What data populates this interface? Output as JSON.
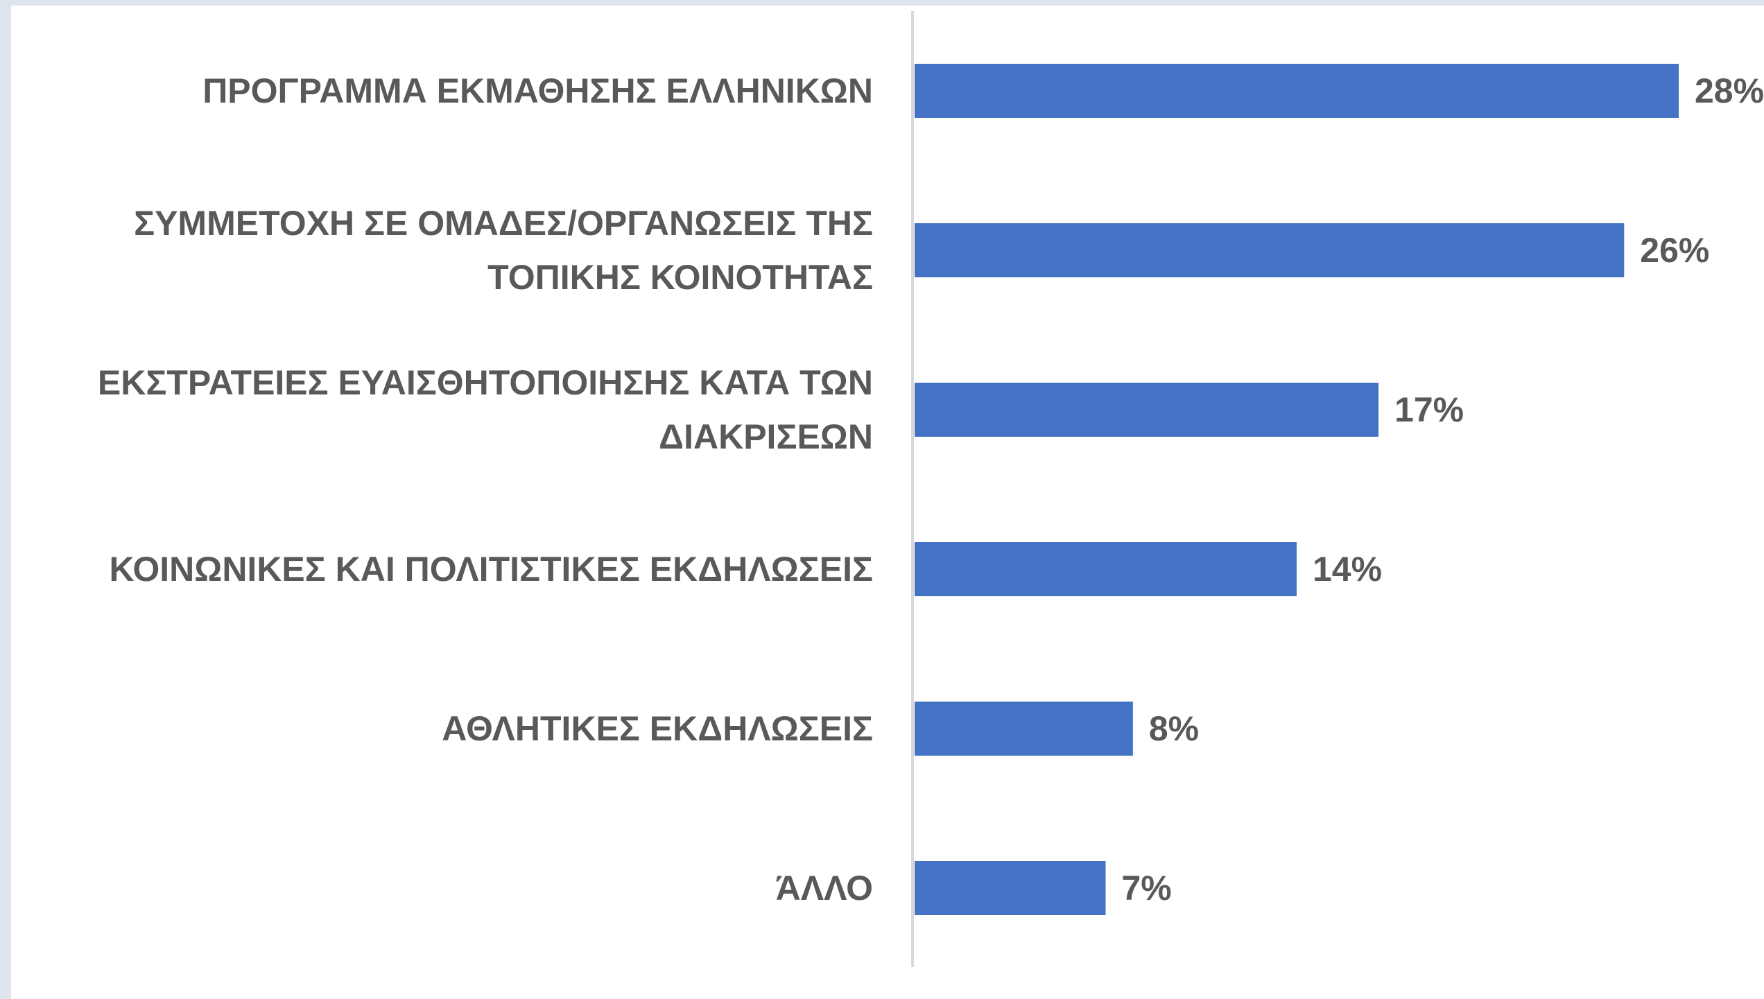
{
  "chart_data": {
    "type": "bar",
    "orientation": "horizontal",
    "categories": [
      "ΠΡΟΓΡΑΜΜΑ ΕΚΜΑΘΗΣΗΣ ΕΛΛΗΝΙΚΩΝ",
      "ΣΥΜΜΕΤΟΧΗ ΣΕ ΟΜΑΔΕΣ/ΟΡΓΑΝΩΣΕΙΣ ΤΗΣ\nΤΟΠΙΚΗΣ ΚΟΙΝΟΤΗΤΑΣ",
      "ΕΚΣΤΡΑΤΕΙΕΣ ΕΥΑΙΣΘΗΤΟΠΟΙΗΣΗΣ ΚΑΤΑ ΤΩΝ\nΔΙΑΚΡΙΣΕΩΝ",
      "ΚΟΙΝΩΝΙΚΕΣ ΚΑΙ ΠΟΛΙΤΙΣΤΙΚΕΣ ΕΚΔΗΛΩΣΕΙΣ",
      "ΑΘΛΗΤΙΚΕΣ ΕΚΔΗΛΩΣΕΙΣ",
      "ΆΛΛΟ"
    ],
    "values": [
      28,
      26,
      17,
      14,
      8,
      7
    ],
    "value_labels": [
      "28%",
      "26%",
      "17%",
      "14%",
      "8%",
      "7%"
    ],
    "color": "#4472c4"
  }
}
